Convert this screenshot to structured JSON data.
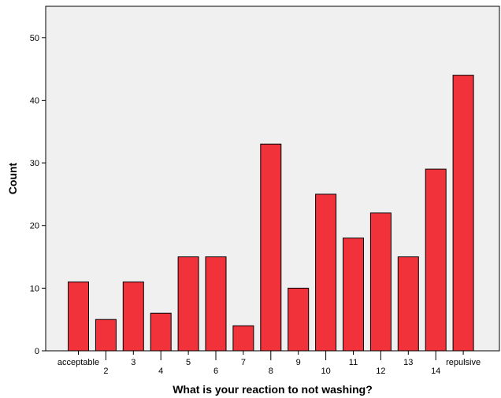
{
  "chart_data": {
    "type": "bar",
    "categories": [
      "acceptable",
      "2",
      "3",
      "4",
      "5",
      "6",
      "7",
      "8",
      "9",
      "10",
      "11",
      "12",
      "13",
      "14",
      "repulsive"
    ],
    "values": [
      11,
      5,
      11,
      6,
      15,
      15,
      4,
      33,
      10,
      25,
      18,
      22,
      15,
      29,
      44
    ],
    "xlabel": "What is your reaction to not washing?",
    "ylabel": "Count",
    "ylim": [
      0,
      55
    ],
    "yticks": [
      0,
      10,
      20,
      30,
      40,
      50
    ],
    "grid": false,
    "colors": {
      "bar_fill": "#f2323a",
      "bar_stroke": "#000000",
      "plot_background": "#f0f0f0"
    }
  }
}
